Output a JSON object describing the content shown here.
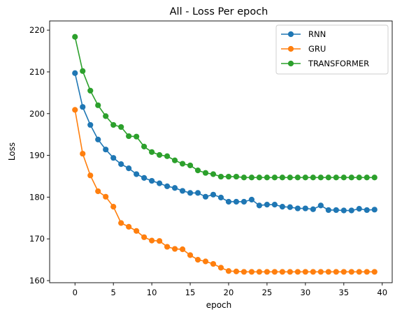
{
  "chart_data": {
    "type": "line",
    "title": "All - Loss Per epoch",
    "xlabel": "epoch",
    "ylabel": "Loss",
    "xlim": [
      -3.3,
      41.3
    ],
    "ylim": [
      159.5,
      222.2
    ],
    "xticks": [
      0,
      5,
      10,
      15,
      20,
      25,
      30,
      35,
      40
    ],
    "yticks": [
      160,
      170,
      180,
      190,
      200,
      210,
      220
    ],
    "grid": false,
    "legend": "top-right",
    "x": [
      0,
      1,
      2,
      3,
      4,
      5,
      6,
      7,
      8,
      9,
      10,
      11,
      12,
      13,
      14,
      15,
      16,
      17,
      18,
      19,
      20,
      21,
      22,
      23,
      24,
      25,
      26,
      27,
      28,
      29,
      30,
      31,
      32,
      33,
      34,
      35,
      36,
      37,
      38,
      39
    ],
    "series": [
      {
        "name": "RNN",
        "color": "#1f77b4",
        "values": [
          209.7,
          201.6,
          197.3,
          193.8,
          191.4,
          189.4,
          187.9,
          186.9,
          185.5,
          184.6,
          183.9,
          183.3,
          182.6,
          182.2,
          181.5,
          181.0,
          181.0,
          180.1,
          180.6,
          179.9,
          178.9,
          178.9,
          178.9,
          179.4,
          178.0,
          178.2,
          178.2,
          177.7,
          177.6,
          177.3,
          177.3,
          177.1,
          178.0,
          176.9,
          176.9,
          176.8,
          176.8,
          177.2,
          176.9,
          177.0
        ]
      },
      {
        "name": "GRU",
        "color": "#ff7f0e",
        "values": [
          200.9,
          190.4,
          185.2,
          181.4,
          180.1,
          177.7,
          173.8,
          172.9,
          171.9,
          170.4,
          169.6,
          169.5,
          168.1,
          167.6,
          167.5,
          166.1,
          165.0,
          164.6,
          164.0,
          163.1,
          162.3,
          162.2,
          162.1,
          162.1,
          162.1,
          162.1,
          162.1,
          162.1,
          162.1,
          162.1,
          162.1,
          162.1,
          162.1,
          162.1,
          162.1,
          162.1,
          162.1,
          162.1,
          162.1,
          162.1
        ]
      },
      {
        "name": "TRANSFORMER",
        "color": "#2ca02c",
        "values": [
          218.4,
          210.2,
          205.5,
          202.0,
          199.4,
          197.3,
          196.8,
          194.6,
          194.5,
          192.1,
          190.8,
          190.1,
          189.8,
          188.8,
          188.0,
          187.6,
          186.4,
          185.8,
          185.5,
          184.9,
          184.9,
          184.9,
          184.7,
          184.7,
          184.7,
          184.7,
          184.7,
          184.7,
          184.7,
          184.7,
          184.7,
          184.7,
          184.7,
          184.7,
          184.7,
          184.7,
          184.7,
          184.7,
          184.7,
          184.7
        ]
      }
    ]
  }
}
